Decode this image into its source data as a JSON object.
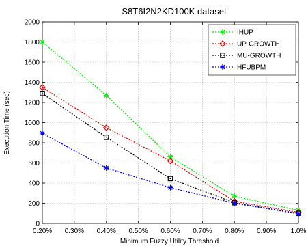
{
  "chart_data": {
    "type": "line",
    "title": "S8T6I2N2KD100K dataset",
    "xlabel": "Minimum Fuzzy Utility Threshold",
    "ylabel": "Execution Time (sec)",
    "x": [
      0.2,
      0.4,
      0.6,
      0.8,
      1.0
    ],
    "xlim": [
      0.2,
      1.0
    ],
    "ylim": [
      0,
      2000
    ],
    "xticks": [
      0.2,
      0.3,
      0.4,
      0.5,
      0.6,
      0.7,
      0.8,
      0.9,
      1.0
    ],
    "xtick_labels": [
      "0.20%",
      "0.30%",
      "0.40%",
      "0.50%",
      "0.60%",
      "0.70%",
      "0.80%",
      "0.90%",
      "1.0%"
    ],
    "yticks": [
      0,
      200,
      400,
      600,
      800,
      1000,
      1200,
      1400,
      1600,
      1800,
      2000
    ],
    "ytick_labels": [
      "0",
      "200",
      "400",
      "600",
      "800",
      "1000",
      "1200",
      "1400",
      "1600",
      "1800",
      "2000"
    ],
    "grid": true,
    "legend_position": "top-right",
    "series": [
      {
        "name": "IHUP",
        "color": "#00ee00",
        "marker": "star",
        "values": [
          1800,
          1270,
          660,
          270,
          130
        ]
      },
      {
        "name": "UP-GROWTH",
        "color": "#ee0000",
        "marker": "diamond",
        "values": [
          1350,
          950,
          620,
          220,
          110
        ]
      },
      {
        "name": "MU-GROWTH",
        "color": "#000000",
        "marker": "square",
        "values": [
          1290,
          855,
          445,
          205,
          100
        ]
      },
      {
        "name": "HFUBPM",
        "color": "#0000ee",
        "marker": "asterisk",
        "values": [
          895,
          550,
          355,
          200,
          95
        ]
      }
    ]
  }
}
